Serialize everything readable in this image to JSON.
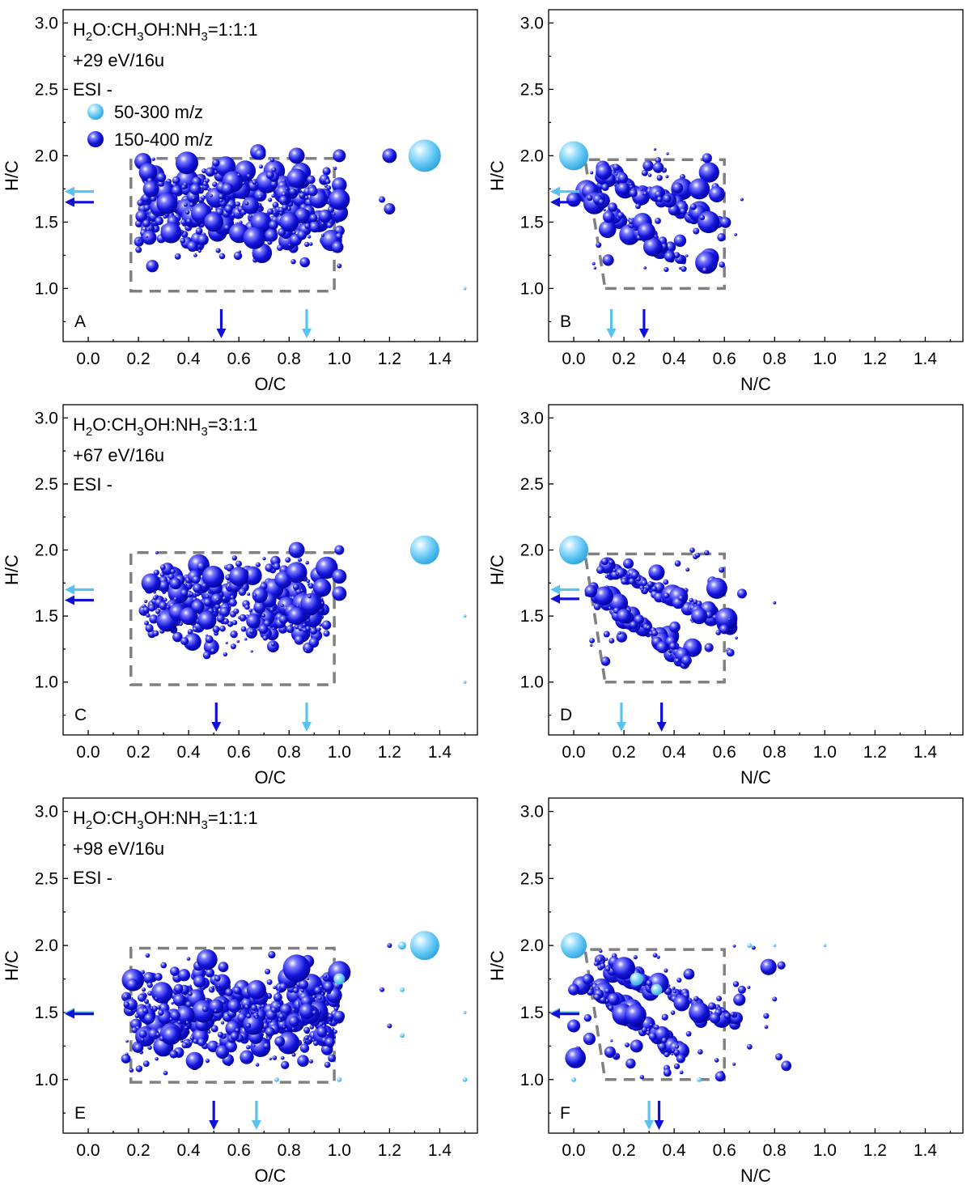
{
  "figure": {
    "legend": [
      {
        "label": "50-300 m/z",
        "color": "#58c3f2"
      },
      {
        "label": "150-400 m/z",
        "color": "#1010d8"
      }
    ],
    "colors": {
      "light": "#58c3f2",
      "dark": "#1010d8",
      "dash": "#808080"
    }
  },
  "chart_data": [
    {
      "panel": "A",
      "type": "scatter",
      "xlabel": "O/C",
      "ylabel": "H/C",
      "xlim": [
        -0.1,
        1.55
      ],
      "ylim": [
        0.6,
        3.1
      ],
      "xticks": [
        "0.0",
        "0.2",
        "0.4",
        "0.6",
        "0.8",
        "1.0",
        "1.2",
        "1.4"
      ],
      "yticks": [
        "1.0",
        "1.5",
        "2.0",
        "2.5",
        "3.0"
      ],
      "annotation": {
        "formula_parts": [
          "H",
          "2",
          "O:CH",
          "3",
          "OH:NH",
          "3",
          "=1:1:1"
        ],
        "energy": "+29 eV/16u",
        "mode": "ESI -"
      },
      "region_box": [
        [
          0.17,
          0.98
        ],
        [
          0.98,
          0.98
        ],
        [
          0.98,
          1.98
        ],
        [
          0.17,
          1.98
        ]
      ],
      "cloud": {
        "xr": [
          0.2,
          1.0
        ],
        "yr": [
          1.12,
          2.08
        ],
        "n": 460,
        "seed": 11,
        "shape": "rect"
      },
      "mean_arrows": {
        "light": {
          "x": 0.87,
          "y": 1.73
        },
        "dark": {
          "x": 0.53,
          "y": 1.65
        }
      },
      "points": [
        {
          "x": 1.34,
          "y": 2.0,
          "s": 20,
          "c": "light"
        },
        {
          "x": 1.0,
          "y": 2.0,
          "s": 6,
          "c": "light"
        },
        {
          "x": 1.0,
          "y": 2.0,
          "s": 8,
          "c": "dark"
        },
        {
          "x": 1.0,
          "y": 1.67,
          "s": 13,
          "c": "dark"
        },
        {
          "x": 1.2,
          "y": 2.0,
          "s": 9,
          "c": "dark"
        },
        {
          "x": 1.2,
          "y": 1.6,
          "s": 7,
          "c": "dark"
        },
        {
          "x": 1.17,
          "y": 1.67,
          "s": 4,
          "c": "dark"
        },
        {
          "x": 0.83,
          "y": 2.0,
          "s": 10,
          "c": "dark"
        },
        {
          "x": 0.83,
          "y": 1.83,
          "s": 12,
          "c": "dark"
        },
        {
          "x": 0.8,
          "y": 1.5,
          "s": 12,
          "c": "dark"
        },
        {
          "x": 0.33,
          "y": 1.42,
          "s": 13,
          "c": "dark"
        },
        {
          "x": 0.5,
          "y": 1.5,
          "s": 12,
          "c": "dark"
        },
        {
          "x": 0.25,
          "y": 1.75,
          "s": 10,
          "c": "dark"
        },
        {
          "x": 1.0,
          "y": 1.17,
          "s": 3,
          "c": "dark"
        },
        {
          "x": 1.5,
          "y": 1.0,
          "s": 2,
          "c": "light"
        }
      ]
    },
    {
      "panel": "B",
      "type": "scatter",
      "xlabel": "N/C",
      "ylabel": "H/C",
      "xlim": [
        -0.1,
        1.55
      ],
      "ylim": [
        0.6,
        3.1
      ],
      "xticks": [
        "0.0",
        "0.2",
        "0.4",
        "0.6",
        "0.8",
        "1.0",
        "1.2",
        "1.4"
      ],
      "yticks": [
        "1.0",
        "1.5",
        "2.0",
        "2.5",
        "3.0"
      ],
      "annotation": null,
      "region_box": [
        [
          0.125,
          1.0
        ],
        [
          0.6,
          1.0
        ],
        [
          0.6,
          1.97
        ],
        [
          0.045,
          1.97
        ]
      ],
      "cloud": {
        "xr": [
          0.04,
          0.6
        ],
        "yr": [
          1.12,
          2.05
        ],
        "n": 240,
        "seed": 23,
        "shape": "bands"
      },
      "mean_arrows": {
        "light": {
          "x": 0.15,
          "y": 1.73
        },
        "dark": {
          "x": 0.28,
          "y": 1.65
        }
      },
      "points": [
        {
          "x": 0.0,
          "y": 2.0,
          "s": 18,
          "c": "light"
        },
        {
          "x": 0.0,
          "y": 1.67,
          "s": 9,
          "c": "dark"
        },
        {
          "x": 0.5,
          "y": 1.75,
          "s": 13,
          "c": "dark"
        },
        {
          "x": 0.57,
          "y": 1.71,
          "s": 10,
          "c": "dark"
        },
        {
          "x": 0.29,
          "y": 1.43,
          "s": 11,
          "c": "dark"
        },
        {
          "x": 0.12,
          "y": 1.88,
          "s": 10,
          "c": "dark"
        },
        {
          "x": 0.67,
          "y": 1.67,
          "s": 2,
          "c": "dark"
        }
      ]
    },
    {
      "panel": "C",
      "type": "scatter",
      "xlabel": "O/C",
      "ylabel": "H/C",
      "xlim": [
        -0.1,
        1.55
      ],
      "ylim": [
        0.6,
        3.1
      ],
      "xticks": [
        "0.0",
        "0.2",
        "0.4",
        "0.6",
        "0.8",
        "1.0",
        "1.2",
        "1.4"
      ],
      "yticks": [
        "1.0",
        "1.5",
        "2.0",
        "2.5",
        "3.0"
      ],
      "annotation": {
        "formula_parts": [
          "H",
          "2",
          "O:CH",
          "3",
          "OH:NH",
          "3",
          "=3:1:1"
        ],
        "energy": "+67 eV/16u",
        "mode": "ESI -"
      },
      "region_box": [
        [
          0.17,
          0.98
        ],
        [
          0.98,
          0.98
        ],
        [
          0.98,
          1.98
        ],
        [
          0.17,
          1.98
        ]
      ],
      "cloud": {
        "xr": [
          0.22,
          0.95
        ],
        "yr": [
          1.12,
          2.05
        ],
        "n": 420,
        "seed": 37,
        "shape": "rect"
      },
      "mean_arrows": {
        "light": {
          "x": 0.87,
          "y": 1.7
        },
        "dark": {
          "x": 0.51,
          "y": 1.62
        }
      },
      "points": [
        {
          "x": 1.34,
          "y": 2.0,
          "s": 18,
          "c": "light"
        },
        {
          "x": 1.0,
          "y": 2.0,
          "s": 6,
          "c": "dark"
        },
        {
          "x": 1.0,
          "y": 1.8,
          "s": 9,
          "c": "dark"
        },
        {
          "x": 1.0,
          "y": 1.67,
          "s": 9,
          "c": "dark"
        },
        {
          "x": 0.83,
          "y": 2.0,
          "s": 10,
          "c": "dark"
        },
        {
          "x": 0.83,
          "y": 1.83,
          "s": 13,
          "c": "dark"
        },
        {
          "x": 0.83,
          "y": 1.5,
          "s": 11,
          "c": "dark"
        },
        {
          "x": 0.25,
          "y": 1.75,
          "s": 12,
          "c": "dark"
        },
        {
          "x": 0.6,
          "y": 1.8,
          "s": 12,
          "c": "dark"
        },
        {
          "x": 0.4,
          "y": 1.5,
          "s": 11,
          "c": "dark"
        },
        {
          "x": 1.5,
          "y": 1.5,
          "s": 2,
          "c": "light"
        },
        {
          "x": 1.5,
          "y": 1.0,
          "s": 2,
          "c": "light"
        }
      ]
    },
    {
      "panel": "D",
      "type": "scatter",
      "xlabel": "N/C",
      "ylabel": "H/C",
      "xlim": [
        -0.1,
        1.55
      ],
      "ylim": [
        0.6,
        3.1
      ],
      "xticks": [
        "0.0",
        "0.2",
        "0.4",
        "0.6",
        "0.8",
        "1.0",
        "1.2",
        "1.4"
      ],
      "yticks": [
        "1.0",
        "1.5",
        "2.0",
        "2.5",
        "3.0"
      ],
      "annotation": null,
      "region_box": [
        [
          0.125,
          1.0
        ],
        [
          0.6,
          1.0
        ],
        [
          0.6,
          1.97
        ],
        [
          0.045,
          1.97
        ]
      ],
      "cloud": {
        "xr": [
          0.05,
          0.65
        ],
        "yr": [
          1.12,
          2.02
        ],
        "n": 240,
        "seed": 53,
        "shape": "bands"
      },
      "mean_arrows": {
        "light": {
          "x": 0.19,
          "y": 1.7
        },
        "dark": {
          "x": 0.35,
          "y": 1.63
        }
      },
      "points": [
        {
          "x": 0.0,
          "y": 2.0,
          "s": 18,
          "c": "light"
        },
        {
          "x": 0.57,
          "y": 1.71,
          "s": 13,
          "c": "dark"
        },
        {
          "x": 0.5,
          "y": 1.5,
          "s": 10,
          "c": "dark"
        },
        {
          "x": 0.67,
          "y": 1.67,
          "s": 6,
          "c": "dark"
        },
        {
          "x": 0.8,
          "y": 1.6,
          "s": 2,
          "c": "dark"
        },
        {
          "x": 0.2,
          "y": 1.5,
          "s": 9,
          "c": "dark"
        },
        {
          "x": 0.33,
          "y": 1.83,
          "s": 10,
          "c": "dark"
        },
        {
          "x": 0.6,
          "y": 1.4,
          "s": 6,
          "c": "dark"
        }
      ]
    },
    {
      "panel": "E",
      "type": "scatter",
      "xlabel": "O/C",
      "ylabel": "H/C",
      "xlim": [
        -0.1,
        1.55
      ],
      "ylim": [
        0.6,
        3.1
      ],
      "xticks": [
        "0.0",
        "0.2",
        "0.4",
        "0.6",
        "0.8",
        "1.0",
        "1.2",
        "1.4"
      ],
      "yticks": [
        "1.0",
        "1.5",
        "2.0",
        "2.5",
        "3.0"
      ],
      "annotation": {
        "formula_parts": [
          "H",
          "2",
          "O:CH",
          "3",
          "OH:NH",
          "3",
          "=1:1:1"
        ],
        "energy": "+98 eV/16u",
        "mode": "ESI -"
      },
      "region_box": [
        [
          0.17,
          0.98
        ],
        [
          0.98,
          0.98
        ],
        [
          0.98,
          1.98
        ],
        [
          0.17,
          1.98
        ]
      ],
      "cloud": {
        "xr": [
          0.15,
          1.0
        ],
        "yr": [
          1.0,
          2.0
        ],
        "n": 520,
        "seed": 71,
        "shape": "rect"
      },
      "mean_arrows": {
        "light": {
          "x": 0.67,
          "y": 1.5
        },
        "dark": {
          "x": 0.5,
          "y": 1.49
        }
      },
      "points": [
        {
          "x": 1.34,
          "y": 2.0,
          "s": 18,
          "c": "light"
        },
        {
          "x": 1.25,
          "y": 2.0,
          "s": 5,
          "c": "light"
        },
        {
          "x": 1.2,
          "y": 2.0,
          "s": 3,
          "c": "dark"
        },
        {
          "x": 0.83,
          "y": 1.83,
          "s": 17,
          "c": "dark"
        },
        {
          "x": 1.0,
          "y": 1.8,
          "s": 14,
          "c": "dark"
        },
        {
          "x": 1.0,
          "y": 1.75,
          "s": 7,
          "c": "light"
        },
        {
          "x": 1.17,
          "y": 1.67,
          "s": 3,
          "c": "dark"
        },
        {
          "x": 1.2,
          "y": 1.4,
          "s": 3,
          "c": "dark"
        },
        {
          "x": 1.25,
          "y": 1.33,
          "s": 3,
          "c": "light"
        },
        {
          "x": 1.25,
          "y": 1.67,
          "s": 3,
          "c": "light"
        },
        {
          "x": 1.5,
          "y": 1.5,
          "s": 2,
          "c": "light"
        },
        {
          "x": 1.5,
          "y": 1.0,
          "s": 3,
          "c": "light"
        },
        {
          "x": 1.0,
          "y": 1.0,
          "s": 3,
          "c": "light"
        },
        {
          "x": 0.75,
          "y": 1.0,
          "s": 3,
          "c": "light"
        },
        {
          "x": 0.67,
          "y": 1.67,
          "s": 12,
          "c": "dark"
        },
        {
          "x": 0.33,
          "y": 1.33,
          "s": 11,
          "c": "dark"
        }
      ]
    },
    {
      "panel": "F",
      "type": "scatter",
      "xlabel": "N/C",
      "ylabel": "H/C",
      "xlim": [
        -0.1,
        1.55
      ],
      "ylim": [
        0.6,
        3.1
      ],
      "xticks": [
        "0.0",
        "0.2",
        "0.4",
        "0.6",
        "0.8",
        "1.0",
        "1.2",
        "1.4"
      ],
      "yticks": [
        "1.0",
        "1.5",
        "2.0",
        "2.5",
        "3.0"
      ],
      "annotation": null,
      "region_box": [
        [
          0.125,
          1.0
        ],
        [
          0.6,
          1.0
        ],
        [
          0.6,
          1.97
        ],
        [
          0.045,
          1.97
        ]
      ],
      "cloud": {
        "xr": [
          0.0,
          0.85
        ],
        "yr": [
          1.0,
          2.0
        ],
        "n": 300,
        "seed": 89,
        "shape": "bands"
      },
      "mean_arrows": {
        "light": {
          "x": 0.3,
          "y": 1.5
        },
        "dark": {
          "x": 0.34,
          "y": 1.49
        }
      },
      "points": [
        {
          "x": 0.0,
          "y": 2.0,
          "s": 16,
          "c": "light"
        },
        {
          "x": 0.0,
          "y": 1.67,
          "s": 7,
          "c": "dark"
        },
        {
          "x": 0.0,
          "y": 1.4,
          "s": 8,
          "c": "dark"
        },
        {
          "x": 0.2,
          "y": 1.83,
          "s": 14,
          "c": "dark"
        },
        {
          "x": 0.25,
          "y": 1.75,
          "s": 8,
          "c": "light"
        },
        {
          "x": 0.33,
          "y": 1.67,
          "s": 7,
          "c": "light"
        },
        {
          "x": 0.5,
          "y": 1.5,
          "s": 13,
          "c": "dark"
        },
        {
          "x": 0.43,
          "y": 1.57,
          "s": 10,
          "c": "dark"
        },
        {
          "x": 0.67,
          "y": 1.67,
          "s": 5,
          "c": "dark"
        },
        {
          "x": 0.8,
          "y": 1.6,
          "s": 3,
          "c": "dark"
        },
        {
          "x": 1.0,
          "y": 2.0,
          "s": 2,
          "c": "light"
        },
        {
          "x": 0.8,
          "y": 2.0,
          "s": 2,
          "c": "light"
        },
        {
          "x": 0.7,
          "y": 2.0,
          "s": 3,
          "c": "light"
        },
        {
          "x": 0.5,
          "y": 1.0,
          "s": 3,
          "c": "light"
        },
        {
          "x": 0.0,
          "y": 1.0,
          "s": 3,
          "c": "light"
        },
        {
          "x": 0.25,
          "y": 1.25,
          "s": 8,
          "c": "dark"
        }
      ]
    }
  ]
}
